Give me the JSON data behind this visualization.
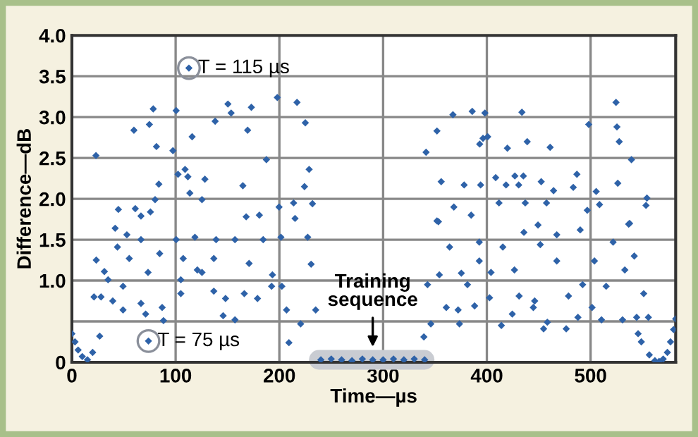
{
  "chart_data": {
    "type": "scatter",
    "xlabel": "Time—µs",
    "ylabel": "Difference—dB",
    "xlim": [
      0,
      582
    ],
    "ylim": [
      0,
      4.0
    ],
    "xticks": [
      0,
      100,
      200,
      300,
      400,
      500
    ],
    "yticks": [
      0,
      {
        "value": 0.5,
        "label": null
      },
      {
        "value": 1,
        "label": "1.0"
      },
      1.5,
      {
        "value": 2,
        "label": "2.0"
      },
      2.5,
      {
        "value": 3,
        "label": "3.0"
      },
      3.5,
      {
        "value": 4,
        "label": "4.0"
      }
    ],
    "grid": true,
    "marker": "diamond",
    "legend": false,
    "annotations": [
      {
        "text": "T = 115 µs",
        "x": 112.8,
        "y": 3.6
      },
      {
        "text": "T = 75 µs",
        "x": 73.8,
        "y": 0.26
      },
      {
        "text": "Training\nsequence",
        "x": 290,
        "y": 0.04
      }
    ],
    "series": [
      {
        "color": "#2e62a8",
        "x": [
          0,
          3,
          6,
          10,
          15,
          20,
          23.2,
          59.8,
          74.7,
          78.4,
          81.5,
          100.5,
          97.4,
          112.8,
          115.9,
          102.3,
          109.1,
          111.8,
          128.2,
          83.8,
          44.8,
          61.1,
          113.7,
          138.1,
          150.4,
          153.5,
          169.4,
          173,
          187.5,
          198,
          217,
          225,
          228.7,
          224.2,
          231.9,
          199.7,
          213.7,
          164.8,
          168,
          180.7,
          125.4,
          80.2,
          75.7,
          66.6,
          367.3,
          385.9,
          398.1,
          433.8,
          351.9,
          341.4,
          396.3,
          400.8,
          393.1,
          419.8,
          438.9,
          461,
          498.2,
          524.5,
          525.4,
          527.6,
          539.4,
          356,
          378.1,
          394,
          408.5,
          427,
          435.2,
          430.7,
          418.5,
          452.4,
          464.3,
          483.3,
          486.8,
          505.4,
          526.2,
          554.3,
          368.2,
          384.9,
          411.7,
          437,
          457.5,
          496.8,
          508.6,
          553.4,
          353.3,
          449.3,
          536.7,
          41.7,
          53,
          43.9,
          23.5,
          31.3,
          21.3,
          28.1,
          26.8,
          39.4,
          49.3,
          49.3,
          66.6,
          73.8,
          71.1,
          87,
          88.3,
          105,
          105,
          120.9,
          125.4,
          136.8,
          148.1,
          157.2,
          145.8,
          166.2,
          178.9,
          192.5,
          202.4,
          209.2,
          206.9,
          220.5,
          230.6,
          235,
          201.5,
          215.1,
          227.3,
          184.4,
          157.2,
          139,
          118.6,
          100.5,
          84.6,
          66.6,
          55.3,
          73.4,
          34.9,
          107.3,
          136.8,
          170.8,
          193.3,
          240,
          250,
          260,
          270,
          280,
          290,
          300,
          310,
          320,
          330,
          340,
          339.3,
          346,
          360.9,
          372.3,
          373.6,
          388.2,
          414,
          424.5,
          444.8,
          454.7,
          458.3,
          476.5,
          487.8,
          501.4,
          510.5,
          530.8,
          544.4,
          555.7,
          545.8,
          548.9,
          556.6,
          562,
          566,
          570,
          574,
          577,
          580,
          582,
          342.8,
          354.2,
          364.1,
          375.4,
          381.3,
          392.7,
          404,
          402.6,
          415.4,
          426.6,
          431.1,
          446.1,
          451.5,
          467.4,
          478.7,
          492.3,
          503.7,
          515,
          521.7,
          533,
          542.1,
          551.2,
          537.6,
          490,
          467.4,
          435.7,
          392.7,
          351.9
        ],
        "values": [
          0.35,
          0.25,
          0.15,
          0.07,
          0.03,
          0.12,
          2.53,
          2.84,
          2.91,
          3.1,
          2.64,
          3.08,
          2.59,
          3.6,
          2.76,
          2.3,
          2.36,
          2.27,
          2.24,
          2.18,
          1.87,
          1.88,
          2.07,
          2.95,
          3.16,
          3.05,
          2.84,
          3.12,
          2.48,
          3.24,
          3.18,
          2.93,
          2.36,
          2.15,
          1.94,
          1.9,
          1.95,
          2.16,
          1.78,
          1.8,
          1.99,
          1.99,
          1.84,
          1.79,
          3.03,
          3.07,
          3.05,
          3.06,
          2.83,
          2.57,
          2.74,
          2.76,
          2.67,
          2.62,
          2.7,
          2.63,
          2.91,
          3.18,
          2.88,
          2.7,
          2.48,
          2.21,
          2.17,
          2.17,
          2.26,
          2.28,
          2.28,
          2.17,
          2.17,
          2.21,
          2.1,
          2.14,
          2.3,
          2.09,
          2.19,
          2.01,
          1.9,
          1.8,
          1.95,
          1.95,
          1.95,
          1.86,
          1.93,
          1.92,
          1.72,
          1.68,
          1.69,
          1.64,
          1.56,
          1.41,
          1.25,
          1.11,
          0.8,
          0.8,
          0.32,
          0.75,
          0.64,
          0.93,
          0.72,
          0.26,
          0.59,
          0.67,
          0.51,
          0.84,
          1.01,
          1.13,
          1.1,
          0.87,
          0.78,
          0.52,
          0.57,
          0.84,
          0.78,
          0.93,
          0.93,
          0.24,
          0.64,
          0.47,
          1.2,
          0.64,
          1.53,
          1.76,
          1.53,
          1.5,
          1.5,
          1.5,
          1.53,
          1.5,
          1.33,
          1.5,
          1.27,
          1.1,
          1.01,
          1.27,
          1.27,
          1.21,
          1.07,
          0.03,
          0.04,
          0.03,
          0.02,
          0.04,
          0.03,
          0.03,
          0.04,
          0.03,
          0.04,
          0.03,
          0.31,
          0.47,
          0.67,
          0.64,
          0.47,
          0.69,
          0.45,
          0.59,
          0.67,
          0.41,
          0.49,
          0.41,
          0.55,
          0.67,
          0.52,
          0.52,
          0.55,
          0.55,
          0.35,
          0.25,
          0.09,
          0.02,
          0.01,
          0.04,
          0.12,
          0.25,
          0.4,
          0.53,
          0.95,
          1.07,
          1.41,
          1.09,
          0.95,
          1.24,
          1.1,
          0.79,
          1.41,
          1.13,
          0.81,
          0.75,
          1.44,
          1.24,
          0.81,
          0.95,
          1.24,
          0.93,
          1.47,
          1.13,
          1.3,
          0.84,
          1.7,
          1.62,
          1.56,
          1.59,
          1.47,
          1.73
        ]
      }
    ]
  }
}
